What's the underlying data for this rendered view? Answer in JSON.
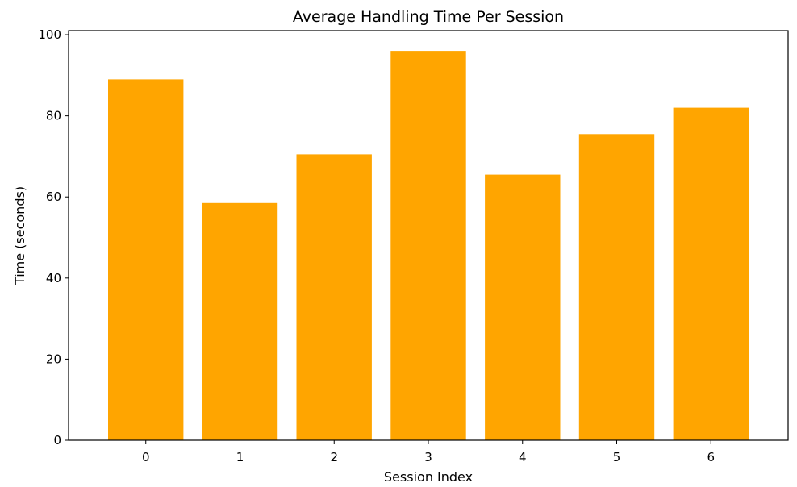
{
  "chart_data": {
    "type": "bar",
    "title": "Average Handling Time Per Session",
    "xlabel": "Session Index",
    "ylabel": "Time (seconds)",
    "categories": [
      "0",
      "1",
      "2",
      "3",
      "4",
      "5",
      "6"
    ],
    "values": [
      89,
      58.5,
      70.5,
      96,
      65.5,
      75.5,
      82
    ],
    "ylim": [
      0,
      101
    ],
    "yticks": [
      0,
      20,
      40,
      60,
      80,
      100
    ],
    "bar_color": "#FFA500",
    "grid": false,
    "legend": "none"
  }
}
